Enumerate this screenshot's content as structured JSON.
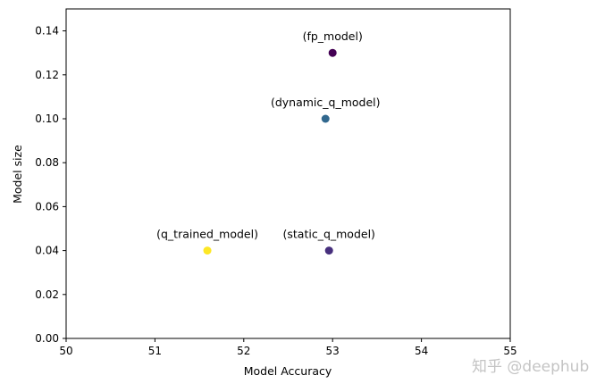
{
  "chart_data": {
    "type": "scatter",
    "title": "",
    "xlabel": "Model Accuracy",
    "ylabel": "Model size",
    "xlim": [
      50,
      55
    ],
    "ylim": [
      0.0,
      0.15
    ],
    "x_ticks": [
      "50",
      "51",
      "52",
      "53",
      "54",
      "55"
    ],
    "y_ticks": [
      "0.00",
      "0.02",
      "0.04",
      "0.06",
      "0.08",
      "0.10",
      "0.12",
      "0.14"
    ],
    "grid": false,
    "points": [
      {
        "label": "(fp_model)",
        "x": 53.0,
        "y": 0.13,
        "color": "#440154"
      },
      {
        "label": "(dynamic_q_model)",
        "x": 52.92,
        "y": 0.1,
        "color": "#31688e"
      },
      {
        "label": "(static_q_model)",
        "x": 52.96,
        "y": 0.04,
        "color": "#472f7d"
      },
      {
        "label": "(q_trained_model)",
        "x": 51.59,
        "y": 0.04,
        "color": "#fde725"
      }
    ]
  },
  "watermark": "知乎 @deephub"
}
